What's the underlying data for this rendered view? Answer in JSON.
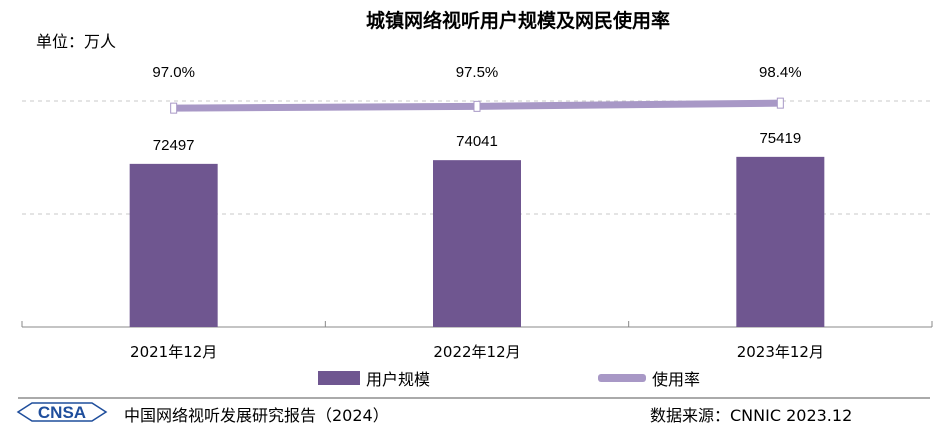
{
  "chart_data": {
    "type": "bar",
    "title": "城镇网络视听用户规模及网民使用率",
    "unit_label": "单位：万人",
    "categories": [
      "2021年12月",
      "2022年12月",
      "2023年12月"
    ],
    "series": [
      {
        "name": "用户规模",
        "type": "bar",
        "values": [
          72497,
          74041,
          75419
        ],
        "labels": [
          "72497",
          "74041",
          "75419"
        ],
        "color": "#6f5690"
      },
      {
        "name": "使用率",
        "type": "line",
        "values": [
          97.0,
          97.5,
          98.4
        ],
        "labels": [
          "97.0%",
          "97.5%",
          "98.4%"
        ],
        "color": "#a898c6",
        "axis": "secondary"
      }
    ],
    "ylim": [
      4500,
      98700
    ],
    "y2lim": [
      35.7,
      99
    ],
    "grid": true,
    "axis_ticks_shown": false,
    "legend_placement": "bottom"
  },
  "footer": {
    "logo": "CNSA",
    "report": "中国网络视听发展研究报告（2024）",
    "source": "数据来源：CNNIC  2023.12"
  }
}
